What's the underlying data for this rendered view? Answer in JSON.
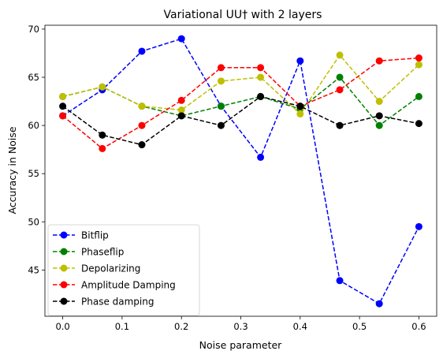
{
  "chart_data": {
    "type": "line",
    "title": "Variational UU† with 2 layers",
    "xlabel": "Noise parameter",
    "ylabel": "Accuracy in Noise",
    "xlim": [
      -0.03,
      0.63
    ],
    "ylim": [
      40.2,
      70.4
    ],
    "xticks": [
      0.0,
      0.1,
      0.2,
      0.3,
      0.4,
      0.5,
      0.6
    ],
    "xtick_labels": [
      "0.0",
      "0.1",
      "0.2",
      "0.3",
      "0.4",
      "0.5",
      "0.6"
    ],
    "yticks": [
      45,
      50,
      55,
      60,
      65,
      70
    ],
    "ytick_labels": [
      "45",
      "50",
      "55",
      "60",
      "65",
      "70"
    ],
    "grid": false,
    "legend_position": "lower-left",
    "x": [
      0.0,
      0.0667,
      0.1333,
      0.2,
      0.2667,
      0.3333,
      0.4,
      0.4667,
      0.5333,
      0.6
    ],
    "series": [
      {
        "name": "Bitflip",
        "color": "#0000ff",
        "values": [
          61,
          63.7,
          67.7,
          69,
          62,
          56.7,
          66.7,
          43.9,
          41.5,
          49.5
        ]
      },
      {
        "name": "Phaseflip",
        "color": "#008000",
        "values": [
          63,
          64,
          62,
          61,
          62,
          63,
          61.7,
          65,
          60,
          63
        ]
      },
      {
        "name": "Depolarizing",
        "color": "#bfbf00",
        "values": [
          63,
          64,
          62,
          61.6,
          64.6,
          65,
          61.2,
          67.3,
          62.5,
          66.3
        ]
      },
      {
        "name": "Amplitude Damping",
        "color": "#ff0000",
        "values": [
          61,
          57.6,
          60,
          62.6,
          66,
          66,
          62,
          63.7,
          66.7,
          67
        ]
      },
      {
        "name": "Phase damping",
        "color": "#000000",
        "values": [
          62,
          59,
          58,
          61,
          60,
          63,
          62,
          60,
          61,
          60.2
        ]
      }
    ]
  }
}
